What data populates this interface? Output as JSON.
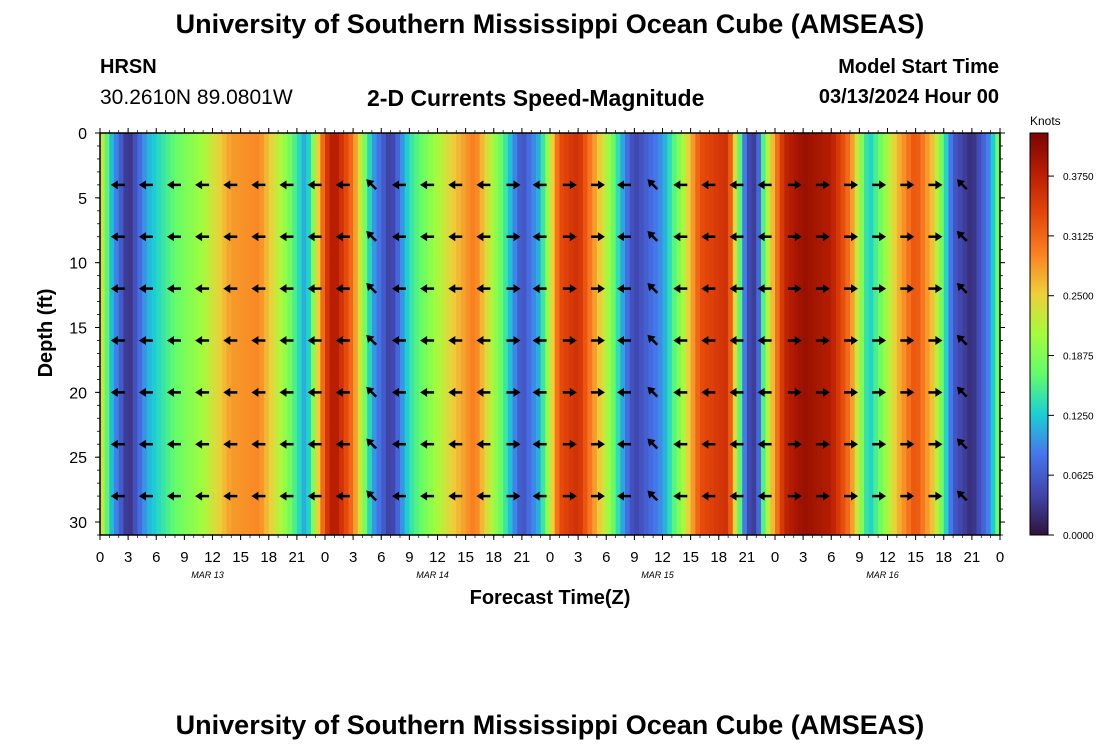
{
  "header": {
    "title": "University of Southern Mississippi Ocean Cube (AMSEAS)",
    "station": "HRSN",
    "coords": "30.2610N  89.0801W",
    "subtitle": "2-D Currents Speed-Magnitude",
    "model_label": "Model Start Time",
    "model_time": "03/13/2024 Hour 00"
  },
  "footer": {
    "title": "University of Southern Mississippi Ocean Cube (AMSEAS)"
  },
  "chart_data": {
    "type": "heatmap",
    "title": "2-D Currents Speed-Magnitude",
    "xlabel": "Forecast Time(Z)",
    "ylabel": "Depth (ft)",
    "x_range_hours": [
      0,
      96
    ],
    "y_range_ft": [
      0,
      31
    ],
    "x_tick_labels": [
      "0",
      "3",
      "6",
      "9",
      "12",
      "15",
      "18",
      "21",
      "0",
      "3",
      "6",
      "9",
      "12",
      "15",
      "18",
      "21",
      "0",
      "3",
      "6",
      "9",
      "12",
      "15",
      "18",
      "21",
      "0",
      "3",
      "6",
      "9",
      "12",
      "15",
      "18",
      "21",
      "0"
    ],
    "y_ticks": [
      0,
      5,
      10,
      15,
      20,
      25,
      30
    ],
    "date_labels": [
      {
        "label": "MAR 13",
        "hour": 12
      },
      {
        "label": "MAR 14",
        "hour": 36
      },
      {
        "label": "MAR 15",
        "hour": 60
      },
      {
        "label": "MAR 16",
        "hour": 84
      }
    ],
    "colorbar": {
      "unit": "Knots",
      "min": 0.0,
      "max": 0.42,
      "tick_labels": [
        "0.3750",
        "0.3125",
        "0.2500",
        "0.1875",
        "0.1250",
        "0.0625",
        "0.0000"
      ],
      "tick_values": [
        0.375,
        0.3125,
        0.25,
        0.1875,
        0.125,
        0.0625,
        0.0
      ]
    },
    "speed_by_hour": [
      {
        "hour": 0,
        "speed": 0.26
      },
      {
        "hour": 1,
        "speed": 0.13
      },
      {
        "hour": 3,
        "speed": 0.02
      },
      {
        "hour": 5,
        "speed": 0.11
      },
      {
        "hour": 8,
        "speed": 0.17
      },
      {
        "hour": 11,
        "speed": 0.21
      },
      {
        "hour": 14,
        "speed": 0.28
      },
      {
        "hour": 17,
        "speed": 0.29
      },
      {
        "hour": 20,
        "speed": 0.19
      },
      {
        "hour": 22,
        "speed": 0.1
      },
      {
        "hour": 24,
        "speed": 0.34
      },
      {
        "hour": 25,
        "speed": 0.39
      },
      {
        "hour": 27,
        "speed": 0.3
      },
      {
        "hour": 29,
        "speed": 0.11
      },
      {
        "hour": 31,
        "speed": 0.03
      },
      {
        "hour": 33,
        "speed": 0.14
      },
      {
        "hour": 35,
        "speed": 0.19
      },
      {
        "hour": 38,
        "speed": 0.26
      },
      {
        "hour": 40,
        "speed": 0.3
      },
      {
        "hour": 43,
        "speed": 0.16
      },
      {
        "hour": 45,
        "speed": 0.05
      },
      {
        "hour": 47,
        "speed": 0.12
      },
      {
        "hour": 49,
        "speed": 0.33
      },
      {
        "hour": 51,
        "speed": 0.36
      },
      {
        "hour": 54,
        "speed": 0.22
      },
      {
        "hour": 56,
        "speed": 0.09
      },
      {
        "hour": 57,
        "speed": 0.04
      },
      {
        "hour": 60,
        "speed": 0.1
      },
      {
        "hour": 62,
        "speed": 0.2
      },
      {
        "hour": 64,
        "speed": 0.33
      },
      {
        "hour": 67,
        "speed": 0.36
      },
      {
        "hour": 68,
        "speed": 0.2
      },
      {
        "hour": 69,
        "speed": 0.05
      },
      {
        "hour": 70,
        "speed": 0.03
      },
      {
        "hour": 71,
        "speed": 0.2
      },
      {
        "hour": 73,
        "speed": 0.37
      },
      {
        "hour": 75,
        "speed": 0.4
      },
      {
        "hour": 78,
        "speed": 0.38
      },
      {
        "hour": 80,
        "speed": 0.3
      },
      {
        "hour": 82,
        "speed": 0.12
      },
      {
        "hour": 85,
        "speed": 0.26
      },
      {
        "hour": 87,
        "speed": 0.33
      },
      {
        "hour": 89,
        "speed": 0.25
      },
      {
        "hour": 91,
        "speed": 0.06
      },
      {
        "hour": 93,
        "speed": 0.02
      },
      {
        "hour": 95,
        "speed": 0.1
      },
      {
        "hour": 96,
        "speed": 0.2
      }
    ],
    "arrow_depths_ft": [
      4,
      8,
      12,
      16,
      20,
      24,
      28
    ],
    "arrow_hours": [
      2,
      5,
      8,
      11,
      14,
      17,
      20,
      23,
      26,
      29,
      32,
      35,
      38,
      41,
      44,
      47,
      50,
      53,
      56,
      59,
      62,
      65,
      68,
      71,
      74,
      77,
      80,
      83,
      86,
      89,
      92
    ],
    "arrow_directions_deg": [
      180,
      180,
      180,
      180,
      180,
      180,
      180,
      180,
      180,
      135,
      180,
      180,
      180,
      180,
      0,
      180,
      0,
      0,
      180,
      135,
      180,
      180,
      180,
      180,
      0,
      0,
      0,
      0,
      0,
      0,
      135
    ]
  }
}
